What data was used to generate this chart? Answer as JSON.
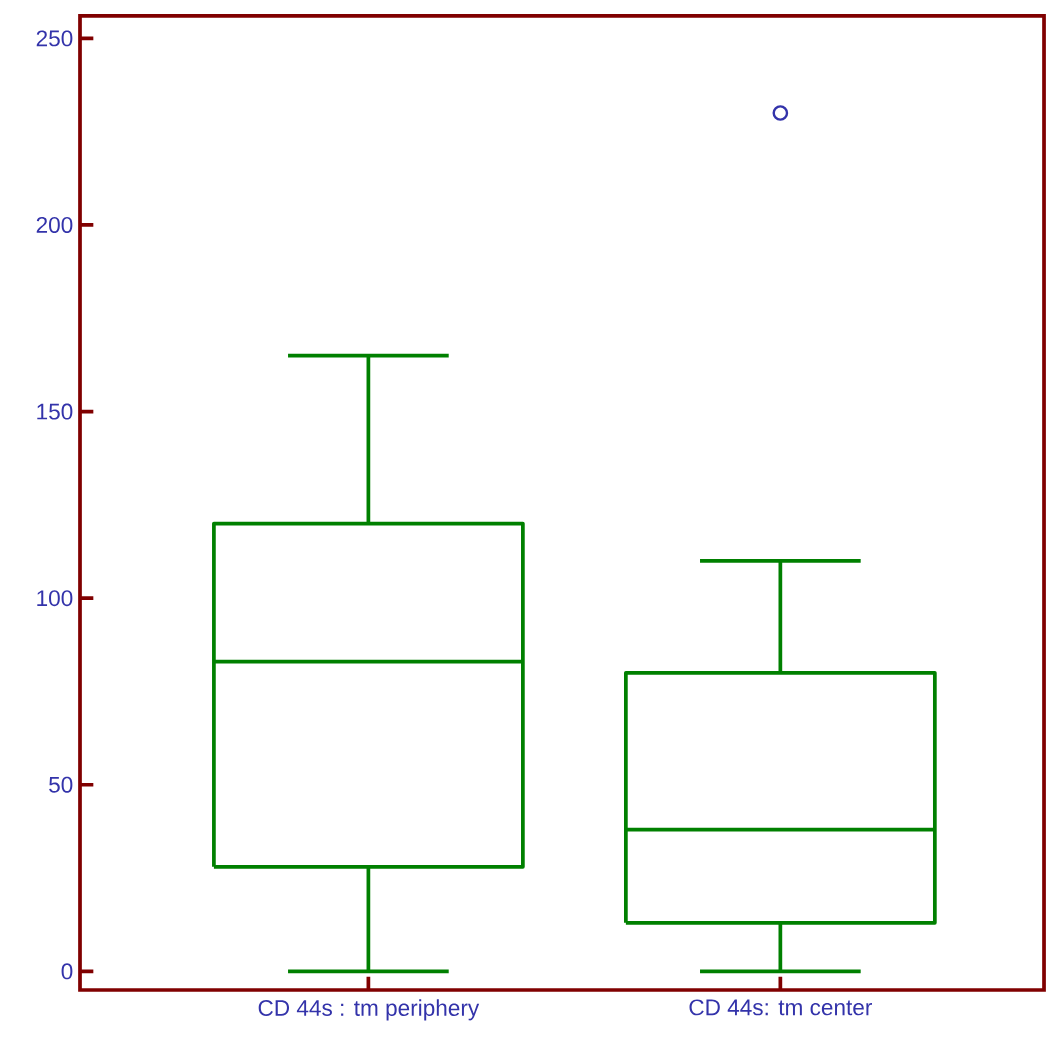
{
  "chart_data": {
    "type": "box",
    "categories": [
      "CD 44s : tm periphery",
      "CD 44s: tm center"
    ],
    "color": "#008000",
    "boxes": [
      {
        "low": 0,
        "q1": 28,
        "median": 83,
        "q3": 120,
        "high": 165
      },
      {
        "low": 0,
        "q1": 13,
        "median": 38,
        "q3": 80,
        "high": 110,
        "outliers": [
          230
        ]
      }
    ],
    "ylim": [
      -5,
      256
    ],
    "yticks": [
      0,
      50,
      100,
      150,
      200,
      250
    ],
    "grid": false
  }
}
